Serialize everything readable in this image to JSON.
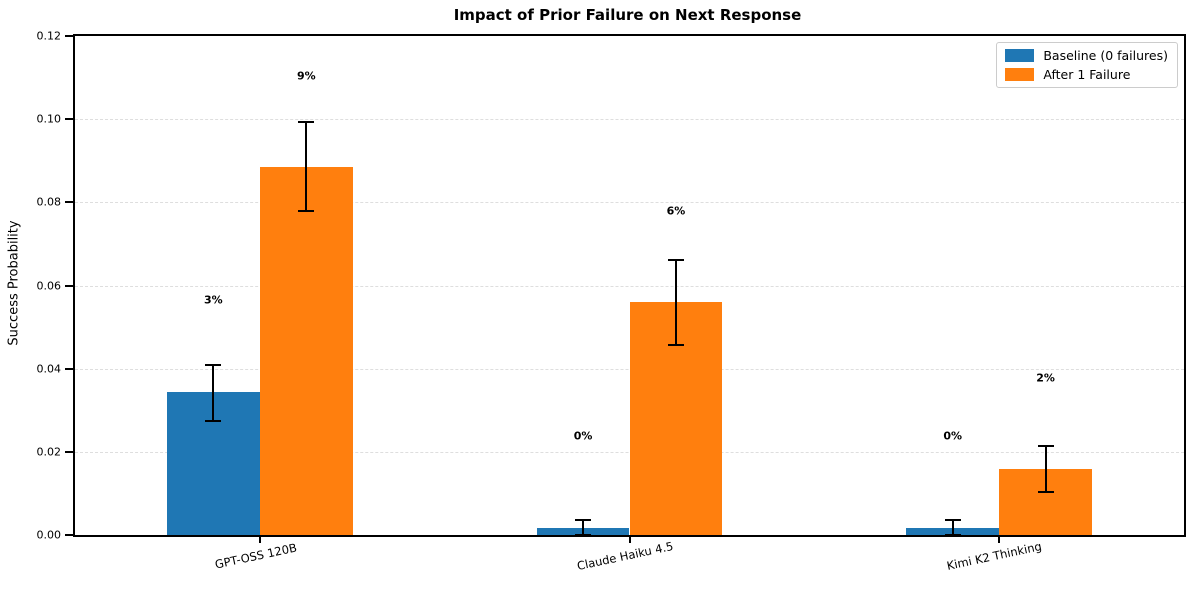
{
  "figure": {
    "title": "Impact of Prior Failure on Next Response",
    "ylabel": "Success Probability"
  },
  "chart_data": {
    "type": "bar",
    "title": "Impact of Prior Failure on Next Response",
    "xlabel": "",
    "ylabel": "Success Probability",
    "categories": [
      "GPT-OSS 120B",
      "Claude Haiku 4.5",
      "Kimi K2 Thinking"
    ],
    "series": [
      {
        "name": "Baseline (0 failures)",
        "color": "#1f77b4",
        "values": [
          0.0345,
          0.0018,
          0.0018
        ],
        "error_low": [
          0.0275,
          0.0001,
          0.0001
        ],
        "error_high": [
          0.041,
          0.0037,
          0.0037
        ],
        "bar_labels": [
          "3%",
          "0%",
          "0%"
        ]
      },
      {
        "name": "After 1 Failure",
        "color": "#ff7f0e",
        "values": [
          0.0885,
          0.056,
          0.0158
        ],
        "error_low": [
          0.0778,
          0.0458,
          0.0103
        ],
        "error_high": [
          0.0993,
          0.0662,
          0.0214
        ],
        "bar_labels": [
          "9%",
          "6%",
          "2%"
        ]
      }
    ],
    "ylim": [
      0,
      0.12
    ],
    "yticks": [
      "0.00",
      "0.02",
      "0.04",
      "0.06",
      "0.08",
      "0.10",
      "0.12"
    ],
    "grid": {
      "axis": "y",
      "style": "dashed",
      "color": "#dedede"
    },
    "legend_position": "upper right",
    "error_bar_color": "#000000",
    "bar_label_offset": 0.022,
    "bar_group_width_fraction": 0.7,
    "xtick_rotation_deg": 12
  }
}
